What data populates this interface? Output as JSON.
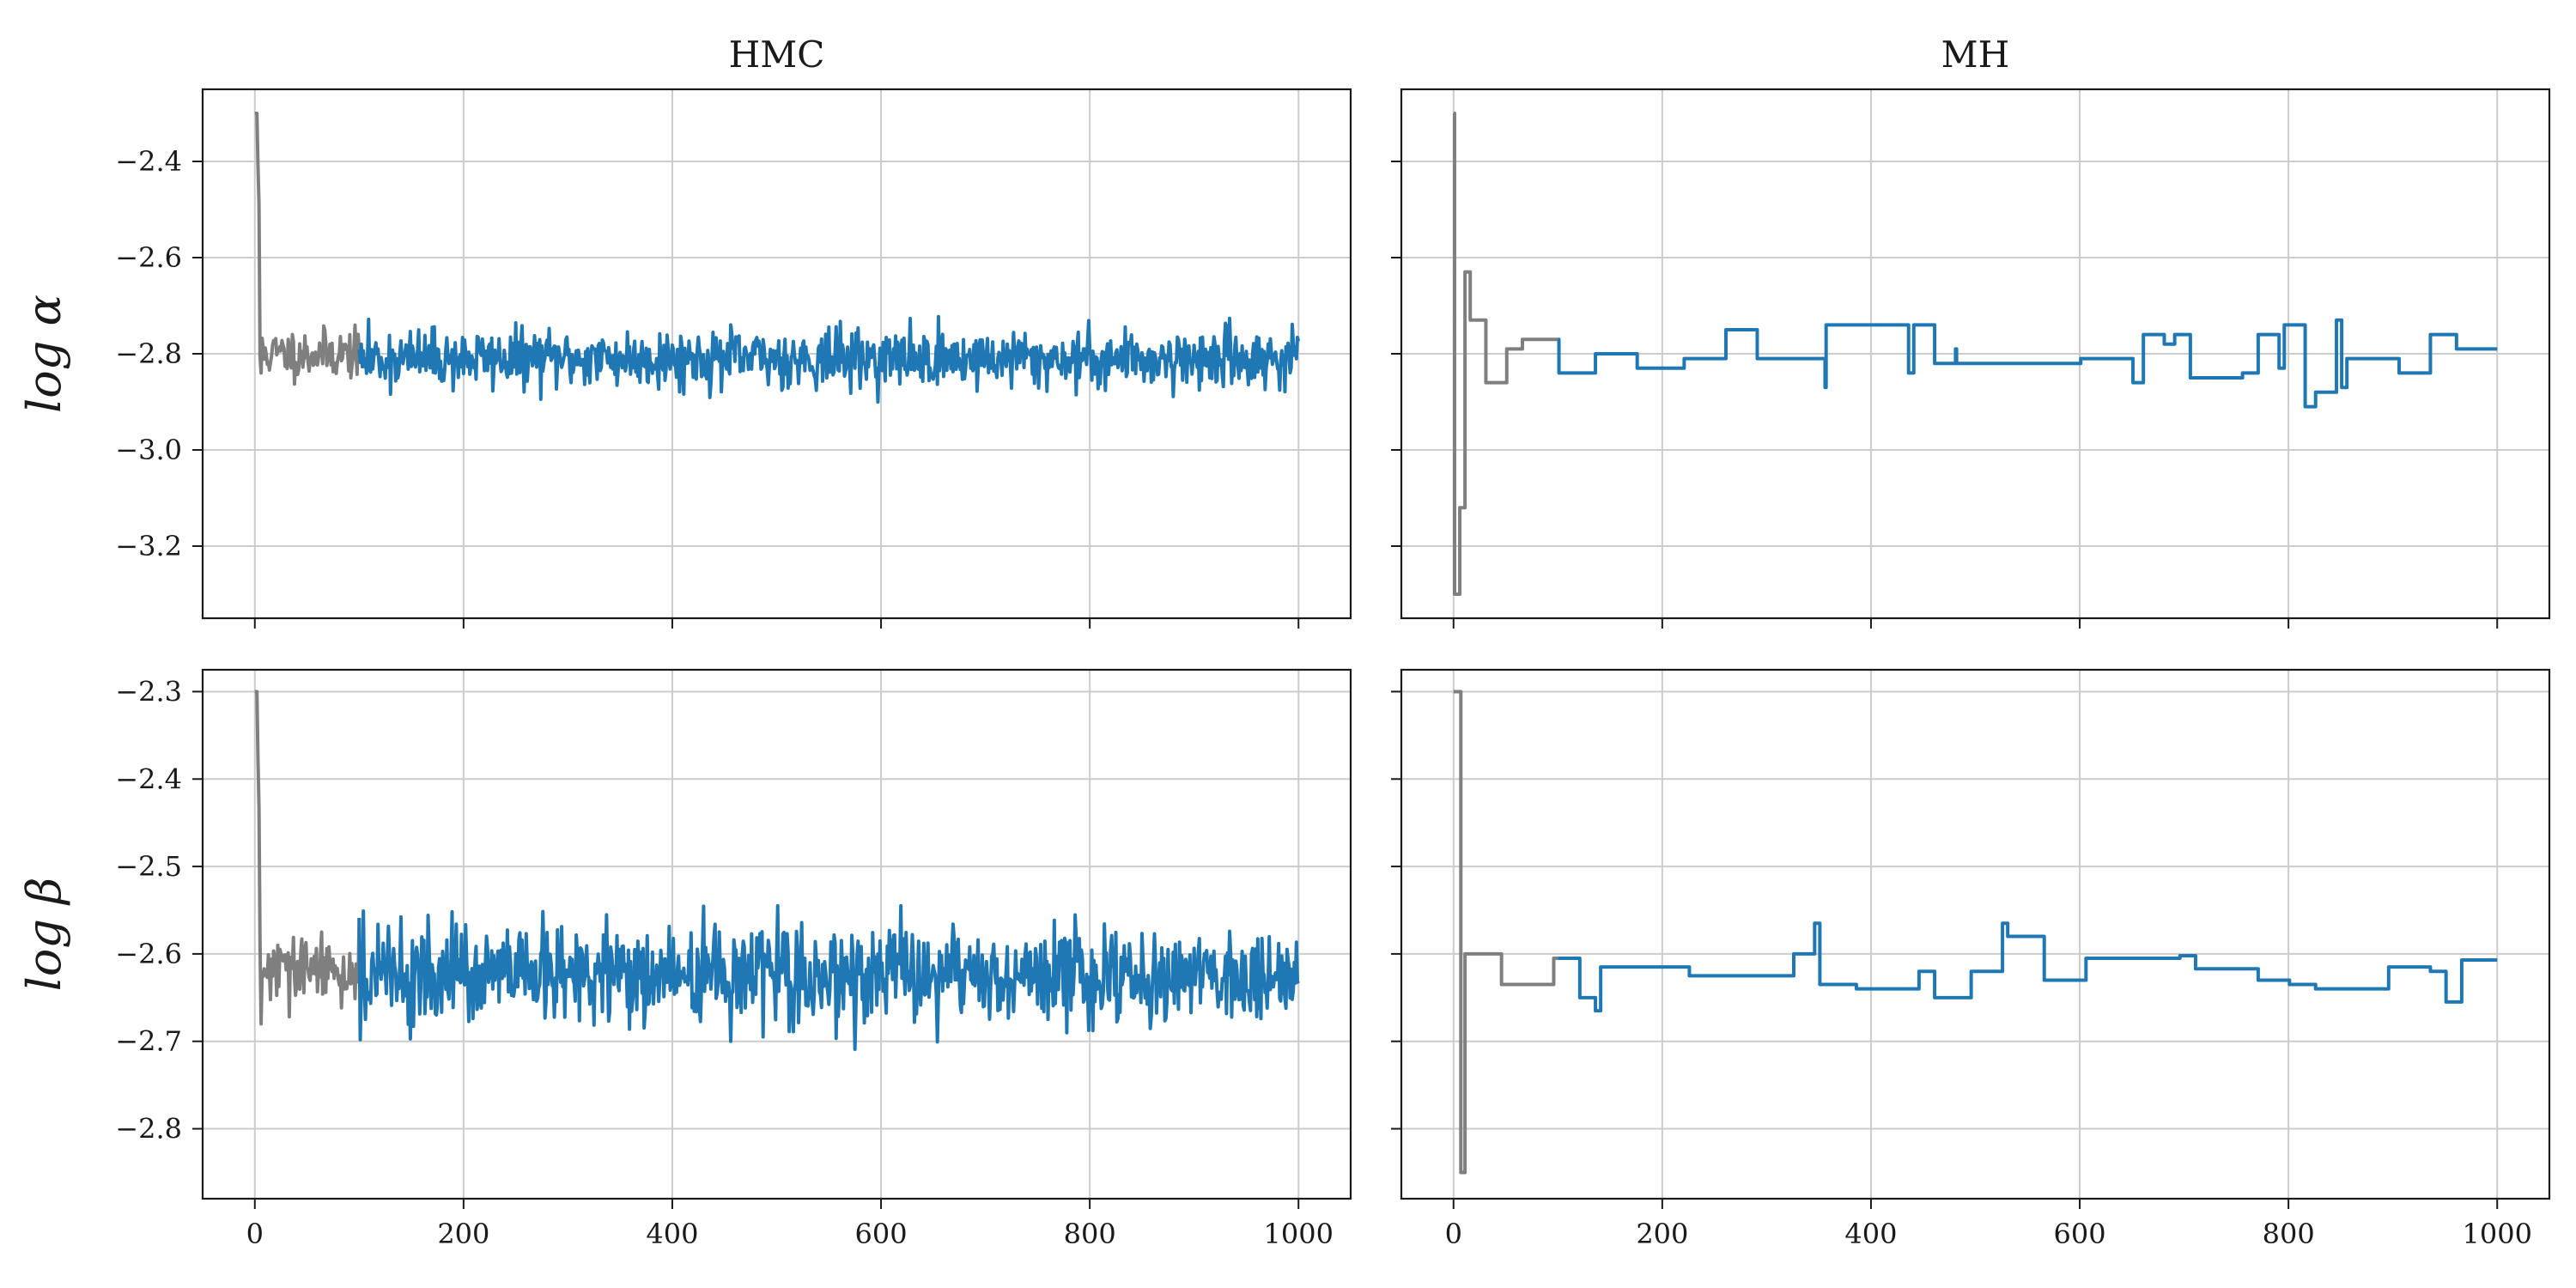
{
  "chart_data": {
    "type": "line",
    "layout": "2x2 grid",
    "column_titles": [
      "HMC",
      "MH"
    ],
    "row_labels": [
      "log α",
      "log β"
    ],
    "x_ticks": [
      0,
      200,
      400,
      600,
      800,
      1000
    ],
    "xlim": [
      -50,
      1050
    ],
    "grid": true,
    "colors": {
      "warmup": "#7f7f7f",
      "samples": "#1f77b4"
    },
    "warmup_end": 100,
    "panels": [
      {
        "row": 0,
        "col": 0,
        "title": "HMC",
        "ylabel": "log α",
        "ylim": [
          -3.35,
          -2.25
        ],
        "y_ticks": [
          -2.4,
          -2.6,
          -2.8,
          -3.0,
          -3.2
        ],
        "y_tick_labels": [
          "−2.4",
          "−2.6",
          "−2.8",
          "−3.0",
          "−3.2"
        ],
        "trace": {
          "kind": "noise",
          "start": -2.3,
          "drop_to": -2.84,
          "warmup_mean": -2.8,
          "mean": -2.81,
          "sd_warmup": 0.025,
          "sd": 0.03,
          "clip": [
            -2.91,
            -2.71
          ],
          "seed": 11,
          "n": 1000
        }
      },
      {
        "row": 0,
        "col": 1,
        "title": "MH",
        "ylabel": "",
        "ylim": [
          -3.35,
          -2.25
        ],
        "y_ticks": [
          -2.4,
          -2.6,
          -2.8,
          -3.0,
          -3.2
        ],
        "y_tick_labels": [],
        "trace": {
          "kind": "steps",
          "points": [
            [
              0,
              -2.3
            ],
            [
              1,
              -3.3
            ],
            [
              6,
              -3.12
            ],
            [
              11,
              -2.63
            ],
            [
              16,
              -2.73
            ],
            [
              31,
              -2.86
            ],
            [
              51,
              -2.79
            ],
            [
              66,
              -2.77
            ],
            [
              101,
              -2.84
            ],
            [
              136,
              -2.8
            ],
            [
              176,
              -2.83
            ],
            [
              221,
              -2.81
            ],
            [
              261,
              -2.75
            ],
            [
              291,
              -2.81
            ],
            [
              356,
              -2.87
            ],
            [
              357,
              -2.74
            ],
            [
              436,
              -2.84
            ],
            [
              441,
              -2.74
            ],
            [
              461,
              -2.82
            ],
            [
              481,
              -2.79
            ],
            [
              482,
              -2.82
            ],
            [
              601,
              -2.81
            ],
            [
              651,
              -2.86
            ],
            [
              661,
              -2.76
            ],
            [
              681,
              -2.78
            ],
            [
              691,
              -2.76
            ],
            [
              706,
              -2.85
            ],
            [
              756,
              -2.84
            ],
            [
              771,
              -2.76
            ],
            [
              791,
              -2.83
            ],
            [
              796,
              -2.74
            ],
            [
              811,
              -2.74
            ],
            [
              816,
              -2.91
            ],
            [
              826,
              -2.88
            ],
            [
              846,
              -2.73
            ],
            [
              851,
              -2.87
            ],
            [
              856,
              -2.81
            ],
            [
              906,
              -2.84
            ],
            [
              936,
              -2.76
            ],
            [
              961,
              -2.79
            ],
            [
              1000,
              -2.79
            ]
          ]
        }
      },
      {
        "row": 1,
        "col": 0,
        "title": "",
        "ylabel": "log β",
        "ylim": [
          -2.88,
          -2.275
        ],
        "y_ticks": [
          -2.3,
          -2.4,
          -2.5,
          -2.6,
          -2.7,
          -2.8
        ],
        "y_tick_labels": [
          "−2.3",
          "−2.4",
          "−2.5",
          "−2.6",
          "−2.7",
          "−2.8"
        ],
        "trace": {
          "kind": "noise",
          "start": -2.3,
          "drop_to": -2.68,
          "warmup_mean": -2.62,
          "mean": -2.625,
          "sd_warmup": 0.02,
          "sd": 0.028,
          "clip": [
            -2.71,
            -2.545
          ],
          "seed": 29,
          "n": 1000
        }
      },
      {
        "row": 1,
        "col": 1,
        "title": "",
        "ylabel": "",
        "ylim": [
          -2.88,
          -2.275
        ],
        "y_ticks": [
          -2.3,
          -2.4,
          -2.5,
          -2.6,
          -2.7,
          -2.8
        ],
        "y_tick_labels": [],
        "trace": {
          "kind": "steps",
          "points": [
            [
              0,
              -2.3
            ],
            [
              6,
              -2.3
            ],
            [
              7,
              -2.85
            ],
            [
              11,
              -2.6
            ],
            [
              46,
              -2.635
            ],
            [
              96,
              -2.605
            ],
            [
              121,
              -2.65
            ],
            [
              136,
              -2.665
            ],
            [
              141,
              -2.615
            ],
            [
              226,
              -2.625
            ],
            [
              326,
              -2.6
            ],
            [
              346,
              -2.565
            ],
            [
              351,
              -2.635
            ],
            [
              386,
              -2.64
            ],
            [
              446,
              -2.62
            ],
            [
              461,
              -2.65
            ],
            [
              496,
              -2.62
            ],
            [
              526,
              -2.565
            ],
            [
              531,
              -2.58
            ],
            [
              566,
              -2.63
            ],
            [
              606,
              -2.605
            ],
            [
              696,
              -2.602
            ],
            [
              711,
              -2.617
            ],
            [
              771,
              -2.63
            ],
            [
              801,
              -2.635
            ],
            [
              826,
              -2.64
            ],
            [
              896,
              -2.615
            ],
            [
              936,
              -2.62
            ],
            [
              951,
              -2.655
            ],
            [
              966,
              -2.607
            ],
            [
              1000,
              -2.607
            ]
          ]
        }
      }
    ]
  }
}
